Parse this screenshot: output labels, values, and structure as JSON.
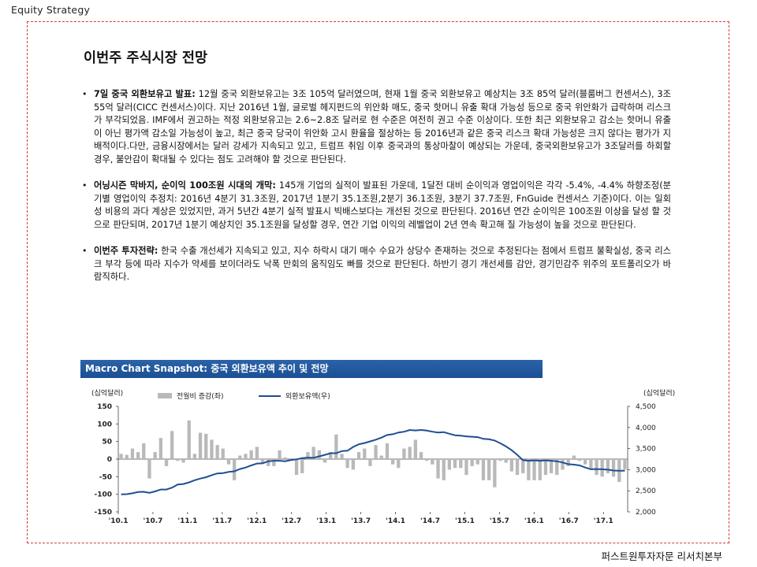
{
  "header": {
    "section_tag": "Equity Strategy"
  },
  "page_title": "이번주 주식시장 전망",
  "bullets": [
    {
      "lead": "7일 중국 외환보유고 발표:",
      "body": " 12월 중국 외환보유고는 3조 105억 달러였으며, 현재 1월 중국 외환보유고 예상치는 3조 85억 달러(블룸버그 컨센서스), 3조 55억 달러(CICC 컨센서스)이다. 지난 2016년 1월, 글로벌 헤지펀드의 위안화 매도, 중국 핫머니 유출 확대 가능성 등으로 중국 위안화가 급락하며 리스크가 부각되었음. IMF에서 권고하는 적정 외환보유고는 2.6~2.8조 달러로 현 수준은 여전히 권고 수준 이상이다. 또한 최근 외환보유고 감소는 핫머니 유출이 아닌 평가액 감소일 가능성이 높고, 최근 중국 당국이 위안화 고시 환율을 절상하는 등 2016년과 같은 중국 리스크 확대 가능성은 크지 않다는 평가가 지배적이다.다만, 금융시장에서는 달러 강세가 지속되고 있고, 트럼프 취임 이후 중국과의 통상마찰이 예상되는 가운데, 중국외환보유고가 3조달러를 하회할 경우, 불안감이 확대될 수 있다는 점도 고려해야 할 것으로 판단된다."
    },
    {
      "lead": "어닝시즌 막바지, 순이익 100조원 시대의 개막:",
      "body": " 145개 기업의 실적이 발표된 가운데, 1달전 대비 순이익과 영업이익은 각각 -5.4%, -4.4% 하향조정(분기별 영업이익 추정치: 2016년 4분기 31.3조원, 2017년 1분기 35.1조원,2분기 36.1조원, 3분기 37.7조원, FnGuide 컨센서스 기준)이다. 이는 일회성 비용의 과다 계상은 있었지만, 과거 5년간 4분기 실적 발표시 빅배스보다는 개선된 것으로 판단된다. 2016년 연간 순이익은 100조원 이상을 달성 할 것으로 판단되며, 2017년 1분기 예상치인 35.1조원을 달성할 경우, 연간 기업 이익의 레벨업이 2년 연속 확고해 질 가능성이 높을 것으로 판단된다."
    },
    {
      "lead": "이번주 투자전략:",
      "body": " 한국 수출 개선세가 지속되고 있고, 지수 하락시 대기 매수 수요가 상당수 존재하는 것으로 추정된다는 점에서 트럼프 불확실성, 중국 리스크 부각 등에 따라 지수가 약세를 보이더라도 낙폭 만회의 움직임도 빠를 것으로 판단된다. 하반기 경기 개선세를 감안, 경기민감주 위주의 포트폴리오가 바람직하다."
    }
  ],
  "chart_banner": "Macro Chart Snapshot: 중국 외환보유액 추이 및 전망",
  "chart_data": {
    "type": "bar+line",
    "left_unit": "(십억달러)",
    "right_unit": "(십억달러)",
    "left_ylim": [
      -150,
      150
    ],
    "left_ticks": [
      "150",
      "100",
      "50",
      "0",
      "-50",
      "-100",
      "-150"
    ],
    "right_ylim": [
      2000,
      4500
    ],
    "right_ticks": [
      "4,500",
      "4,000",
      "3,500",
      "3,000",
      "2,500",
      "2,000"
    ],
    "x_ticks": [
      "'10.1",
      "'10.7",
      "'11.1",
      "'11.7",
      "'12.1",
      "'12.7",
      "'13.1",
      "'13.7",
      "'14.1",
      "'14.7",
      "'15.1",
      "'15.7",
      "'16.1",
      "'16.7",
      "'17.1"
    ],
    "series": [
      {
        "name": "전월비 증감(좌)",
        "kind": "bar",
        "color": "#b9b9b9",
        "axis": "left",
        "values": [
          15,
          12,
          30,
          20,
          45,
          -55,
          20,
          60,
          -20,
          80,
          -5,
          -10,
          110,
          15,
          75,
          72,
          55,
          40,
          30,
          -15,
          -60,
          10,
          15,
          25,
          35,
          -10,
          -20,
          -20,
          25,
          5,
          -5,
          -45,
          -40,
          20,
          35,
          25,
          -10,
          20,
          70,
          15,
          -25,
          -30,
          20,
          30,
          -20,
          40,
          10,
          45,
          -15,
          -25,
          30,
          35,
          55,
          20,
          -5,
          -15,
          -55,
          -60,
          -30,
          -25,
          -25,
          -45,
          -20,
          -15,
          -60,
          -60,
          -80,
          -5,
          -10,
          -35,
          -45,
          -40,
          -60,
          -60,
          -60,
          -45,
          -40,
          -45,
          -30,
          -20,
          10,
          -5,
          -15,
          -30,
          -45,
          -50,
          -40,
          -50,
          -65,
          -30
        ]
      },
      {
        "name": "외환보유액(우)",
        "kind": "line",
        "color": "#1f4e93",
        "axis": "right",
        "values": [
          2415,
          2420,
          2440,
          2470,
          2475,
          2450,
          2485,
          2530,
          2530,
          2575,
          2650,
          2660,
          2700,
          2750,
          2790,
          2820,
          2870,
          2910,
          2920,
          2945,
          2960,
          3015,
          3050,
          3100,
          3145,
          3150,
          3200,
          3210,
          3210,
          3200,
          3230,
          3245,
          3275,
          3285,
          3280,
          3315,
          3350,
          3390,
          3390,
          3440,
          3450,
          3540,
          3600,
          3630,
          3670,
          3710,
          3760,
          3820,
          3840,
          3880,
          3900,
          3940,
          3930,
          3940,
          3925,
          3900,
          3880,
          3890,
          3850,
          3815,
          3805,
          3790,
          3780,
          3770,
          3730,
          3720,
          3690,
          3625,
          3550,
          3460,
          3350,
          3225,
          3210,
          3220,
          3210,
          3220,
          3210,
          3200,
          3170,
          3130,
          3120,
          3100,
          3050,
          3010,
          3015,
          3010,
          3000,
          2980,
          2975,
          2975
        ]
      }
    ]
  },
  "footer": {
    "credit": "퍼스트원투자자문 리서치본부"
  }
}
